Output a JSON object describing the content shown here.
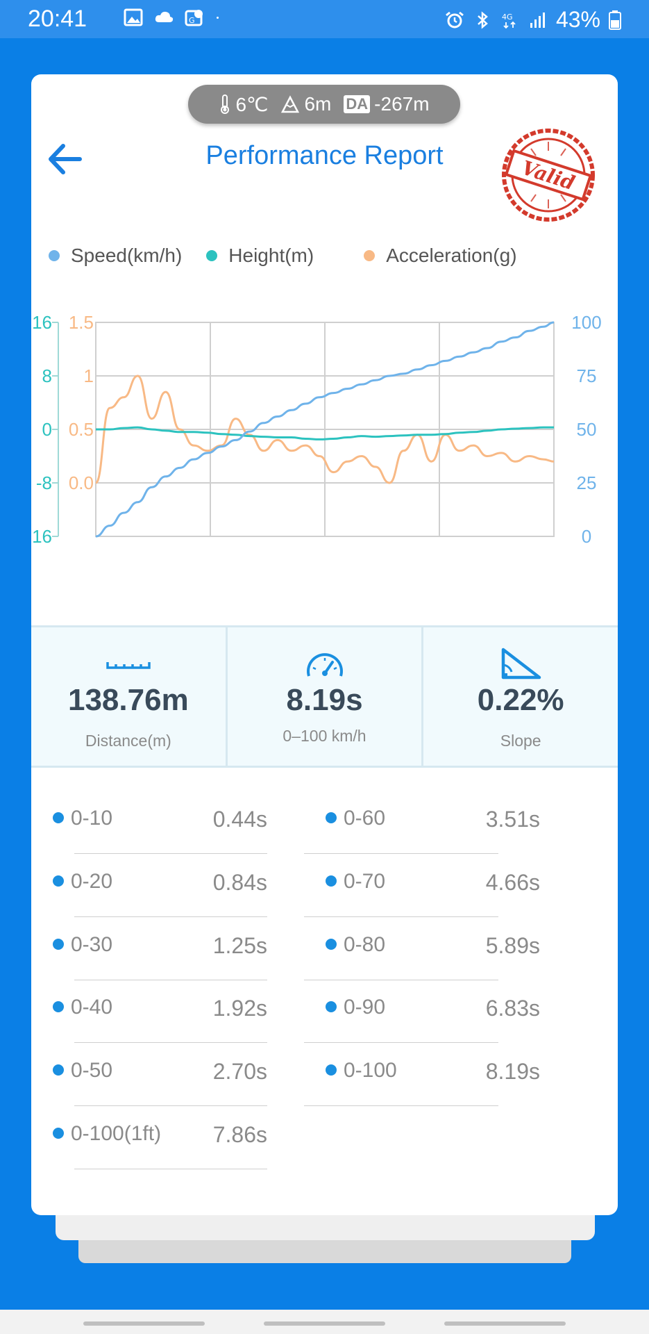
{
  "status_bar": {
    "time": "20:41",
    "battery": "43%",
    "left_icons": [
      "image-icon",
      "cloud-icon",
      "maps-icon",
      "dot-icon"
    ],
    "right_icons": [
      "alarm-icon",
      "bluetooth-icon",
      "4g-icon",
      "signal-icon",
      "battery-icon"
    ]
  },
  "weather": {
    "temperature": "6℃",
    "altitude": "6m",
    "da_label": "DA",
    "density_altitude": "-267m"
  },
  "header": {
    "title": "Performance Report",
    "stamp_text": "Valid"
  },
  "legend": {
    "speed": "Speed(km/h)",
    "height": "Height(m)",
    "acceleration": "Acceleration(g)"
  },
  "colors": {
    "speed": "#6fb3ea",
    "height": "#2cc2bf",
    "acceleration": "#f8b985",
    "accent": "#1a7fe0",
    "stamp": "#d33a2c"
  },
  "chart_data": {
    "type": "line",
    "grid": true,
    "left_axis_height": {
      "ticks": [
        "16",
        "8",
        "0",
        "-8",
        "-16"
      ],
      "ylim": [
        -16,
        16
      ]
    },
    "left_axis_acceleration": {
      "ticks": [
        "1.5",
        "1",
        "0.5",
        "0.0"
      ],
      "ylim": [
        -0.5,
        1.5
      ]
    },
    "right_axis_speed": {
      "ticks": [
        "100",
        "75",
        "50",
        "25",
        "0"
      ],
      "ylim": [
        0,
        100
      ]
    },
    "x": [
      0,
      0.25,
      0.5,
      0.75,
      1,
      1.25,
      1.5,
      1.75,
      2,
      2.25,
      2.5,
      2.75,
      3,
      3.25,
      3.5,
      3.75,
      4,
      4.25,
      4.5,
      4.75,
      5,
      5.25,
      5.5,
      5.75,
      6,
      6.25,
      6.5,
      6.75,
      7,
      7.25,
      7.5,
      7.75,
      8,
      8.19
    ],
    "series": [
      {
        "name": "Speed(km/h)",
        "axis": "right",
        "values": [
          0,
          5,
          11,
          16,
          23,
          28,
          32,
          36,
          39,
          42,
          45,
          49,
          53,
          56,
          59,
          62,
          65,
          67,
          69,
          71,
          73,
          75,
          76,
          78,
          80,
          82,
          84,
          86,
          88,
          91,
          93,
          96,
          98,
          100
        ]
      },
      {
        "name": "Height(m)",
        "axis": "left-height",
        "values": [
          0,
          0,
          0.2,
          0.3,
          0,
          -0.2,
          -0.4,
          -0.4,
          -0.5,
          -0.7,
          -0.8,
          -1,
          -1.1,
          -1.2,
          -1.2,
          -1.4,
          -1.5,
          -1.4,
          -1.2,
          -1,
          -1.1,
          -1,
          -0.9,
          -0.8,
          -0.8,
          -0.7,
          -0.5,
          -0.4,
          -0.2,
          0,
          0.1,
          0.2,
          0.3,
          0.3
        ]
      },
      {
        "name": "Acceleration(g)",
        "axis": "left-acceleration",
        "values": [
          0,
          0.7,
          0.8,
          1.0,
          0.6,
          0.85,
          0.5,
          0.35,
          0.3,
          0.35,
          0.6,
          0.45,
          0.3,
          0.4,
          0.3,
          0.35,
          0.25,
          0.1,
          0.2,
          0.25,
          0.15,
          0.0,
          0.3,
          0.45,
          0.2,
          0.45,
          0.3,
          0.35,
          0.25,
          0.28,
          0.2,
          0.25,
          0.22,
          0.2
        ]
      }
    ]
  },
  "stats": [
    {
      "value": "138.76m",
      "label": "Distance(m)",
      "icon": "ruler-icon"
    },
    {
      "value": "8.19s",
      "label": "0–100 km/h",
      "icon": "speedometer-icon"
    },
    {
      "value": "0.22%",
      "label": "Slope",
      "icon": "slope-icon"
    }
  ],
  "split_times": {
    "left": [
      {
        "name": "0-10",
        "time": "0.44s"
      },
      {
        "name": "0-20",
        "time": "0.84s"
      },
      {
        "name": "0-30",
        "time": "1.25s"
      },
      {
        "name": "0-40",
        "time": "1.92s"
      },
      {
        "name": "0-50",
        "time": "2.70s"
      },
      {
        "name": "0-100(1ft)",
        "time": "7.86s"
      }
    ],
    "right": [
      {
        "name": "0-60",
        "time": "3.51s"
      },
      {
        "name": "0-70",
        "time": "4.66s"
      },
      {
        "name": "0-80",
        "time": "5.89s"
      },
      {
        "name": "0-90",
        "time": "6.83s"
      },
      {
        "name": "0-100",
        "time": "8.19s"
      }
    ]
  }
}
